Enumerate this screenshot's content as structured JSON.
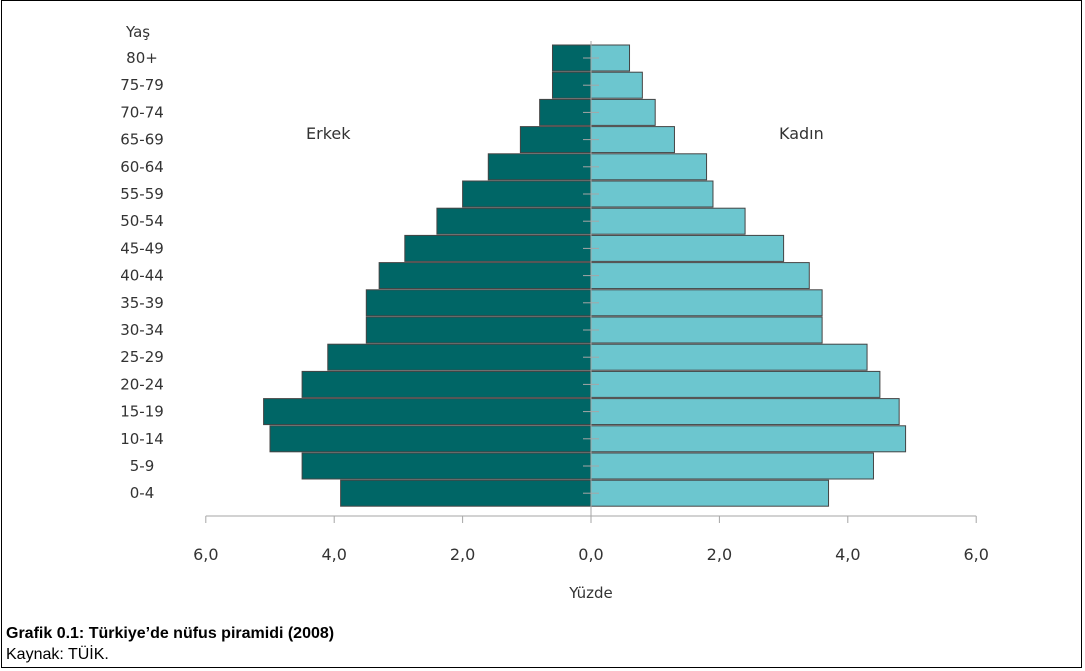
{
  "caption": "Grafik 0.1: Türkiye’de nüfus piramidi (2008)",
  "source": "Kaynak: TÜİK.",
  "colors": {
    "male": "#006666",
    "female": "#6cc6cf",
    "axis": "#a6a6a6",
    "text": "#333333",
    "edge": "#444444"
  },
  "chart_data": {
    "type": "bar",
    "orientation": "horizontal-pyramid",
    "age_axis_title": "Yaş",
    "xlabel": "Yüzde",
    "xlim": [
      -6,
      6
    ],
    "x_tick_labels": [
      "6,0",
      "4,0",
      "2,0",
      "0,0",
      "2,0",
      "4,0",
      "6,0"
    ],
    "categories": [
      "0-4",
      "5-9",
      "10-14",
      "15-19",
      "20-24",
      "25-29",
      "30-34",
      "35-39",
      "40-44",
      "45-49",
      "50-54",
      "55-59",
      "60-64",
      "65-69",
      "70-74",
      "75-79",
      "80+"
    ],
    "series": [
      {
        "name": "Erkek",
        "values": [
          3.9,
          4.5,
          5.0,
          5.1,
          4.5,
          4.1,
          3.5,
          3.5,
          3.3,
          2.9,
          2.4,
          2.0,
          1.6,
          1.1,
          0.8,
          0.6,
          0.6
        ]
      },
      {
        "name": "Kadın",
        "values": [
          3.7,
          4.4,
          4.9,
          4.8,
          4.5,
          4.3,
          3.6,
          3.6,
          3.4,
          3.0,
          2.4,
          1.9,
          1.8,
          1.3,
          1.0,
          0.8,
          0.6
        ]
      }
    ]
  }
}
